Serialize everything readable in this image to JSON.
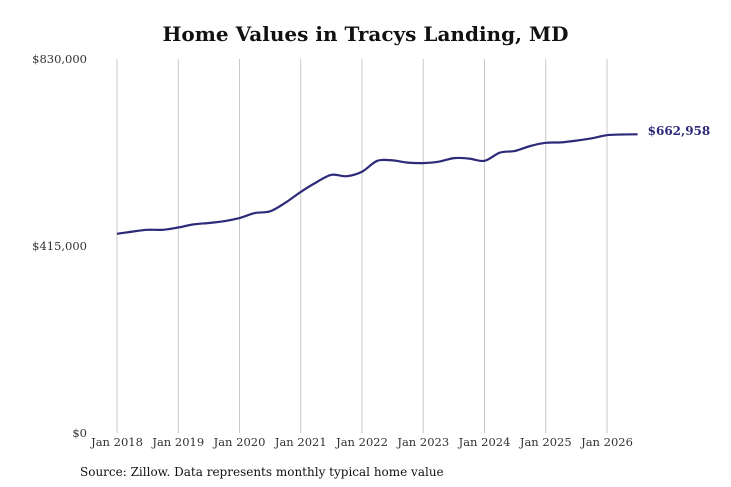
{
  "chart_data": {
    "type": "line",
    "title": "Home Values in Tracys Landing, MD",
    "xlabel": "",
    "ylabel": "",
    "ylim": [
      0,
      830000
    ],
    "y_ticks": [
      "$0",
      "$415,000",
      "$830,000"
    ],
    "y_tick_values": [
      0,
      415000,
      830000
    ],
    "x_ticks": [
      "Jan 2018",
      "Jan 2019",
      "Jan 2020",
      "Jan 2021",
      "Jan 2022",
      "Jan 2023",
      "Jan 2024",
      "Jan 2025",
      "Jan 2026"
    ],
    "x_tick_values": [
      "2018-01",
      "2019-01",
      "2020-01",
      "2021-01",
      "2022-01",
      "2023-01",
      "2024-01",
      "2025-01",
      "2026-01"
    ],
    "grid": "vertical",
    "line_color": "#2e2a7a",
    "end_label": "$662,958",
    "series": [
      {
        "x": [
          "2018-01",
          "2018-04",
          "2018-07",
          "2018-10",
          "2019-01",
          "2019-04",
          "2019-07",
          "2019-10",
          "2020-01",
          "2020-04",
          "2020-07",
          "2020-10",
          "2021-01",
          "2021-04",
          "2021-07",
          "2021-10",
          "2022-01",
          "2022-04",
          "2022-07",
          "2022-10",
          "2023-01",
          "2023-04",
          "2023-07",
          "2023-10",
          "2024-01",
          "2024-04",
          "2024-07",
          "2024-10",
          "2025-01",
          "2025-04",
          "2025-07",
          "2025-10",
          "2026-01",
          "2026-04",
          "2026-07"
        ],
        "values": [
          442000,
          447000,
          451000,
          451000,
          456000,
          463000,
          466000,
          470000,
          477000,
          488000,
          492000,
          511000,
          535000,
          556000,
          573000,
          570000,
          580000,
          604000,
          605000,
          600000,
          599000,
          602000,
          610000,
          609000,
          604000,
          622000,
          626000,
          637000,
          644000,
          645000,
          649000,
          654000,
          661000,
          662500,
          662958
        ]
      }
    ]
  },
  "footer": {
    "source": "Source: Zillow. Data represents monthly typical home value"
  }
}
